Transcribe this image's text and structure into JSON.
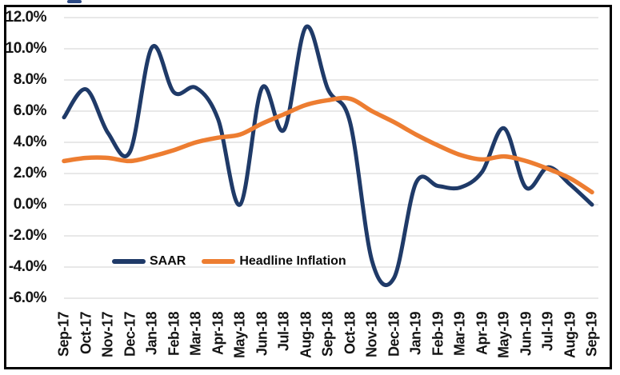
{
  "chart_data": {
    "type": "line",
    "smoothed": true,
    "title": "",
    "xlabel": "",
    "ylabel": "",
    "categories": [
      "Sep-17",
      "Oct-17",
      "Nov-17",
      "Dec-17",
      "Jan-18",
      "Feb-18",
      "Mar-18",
      "Apr-18",
      "May-18",
      "Jun-18",
      "Jul-18",
      "Aug-18",
      "Sep-18",
      "Oct-18",
      "Nov-18",
      "Dec-18",
      "Jan-19",
      "Feb-19",
      "Mar-19",
      "Apr-19",
      "May-19",
      "Jun-19",
      "Jul-19",
      "Aug-19",
      "Sep-19"
    ],
    "series": [
      {
        "name": "SAAR",
        "color": "#1f3a68",
        "values": [
          5.6,
          7.4,
          4.6,
          3.4,
          10.1,
          7.2,
          7.5,
          5.5,
          0.0,
          7.5,
          4.8,
          11.4,
          7.4,
          5.3,
          -3.6,
          -4.7,
          1.4,
          1.2,
          1.1,
          2.1,
          4.9,
          1.1,
          2.4,
          1.3,
          0.0
        ]
      },
      {
        "name": "Headline Inflation",
        "color": "#ed7d31",
        "values": [
          2.8,
          3.0,
          3.0,
          2.8,
          3.1,
          3.5,
          4.0,
          4.3,
          4.5,
          5.2,
          5.8,
          6.4,
          6.7,
          6.8,
          6.0,
          5.3,
          4.5,
          3.8,
          3.2,
          2.9,
          3.1,
          2.8,
          2.3,
          1.7,
          0.8
        ]
      }
    ],
    "y_ticks": [
      {
        "value": 12,
        "label": "12.0%"
      },
      {
        "value": 10,
        "label": "10.0%"
      },
      {
        "value": 8,
        "label": "8.0%"
      },
      {
        "value": 6,
        "label": "6.0%"
      },
      {
        "value": 4,
        "label": "4.0%"
      },
      {
        "value": 2,
        "label": "2.0%"
      },
      {
        "value": 0,
        "label": "0.0%"
      },
      {
        "value": -2,
        "label": "-2.0%"
      },
      {
        "value": -4,
        "label": "-4.0%"
      },
      {
        "value": -6,
        "label": "-6.0%"
      }
    ],
    "ylim": [
      -6.4,
      12.7
    ],
    "grid": "horizontal",
    "gridline_color": "#d9d9d9",
    "axis_text_color": "#141414",
    "legend_position": "inside-bottom-left",
    "frame_border_color": "#000000",
    "background": "#ffffff"
  }
}
